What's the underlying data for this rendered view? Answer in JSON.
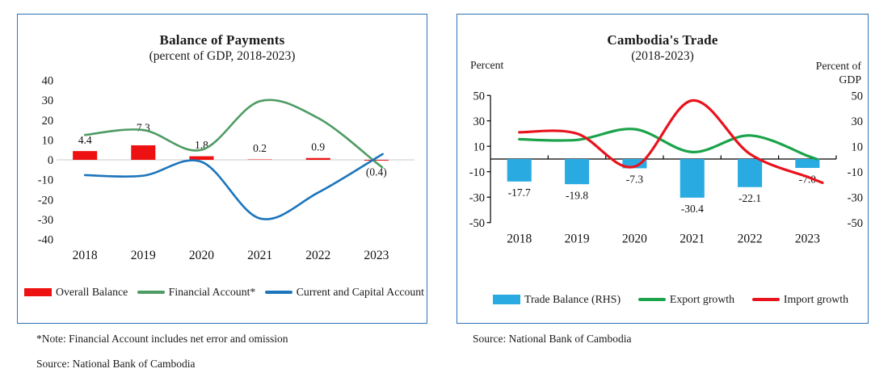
{
  "chart_data": [
    {
      "type": "bar+line combo",
      "title": "Balance of Payments",
      "subtitle": "(percent of GDP, 2018-2023)",
      "categories": [
        "2018",
        "2019",
        "2020",
        "2021",
        "2022",
        "2023"
      ],
      "ylim": [
        -40,
        40
      ],
      "ytick_step": 10,
      "grid": "zero-line only",
      "legend_position": "bottom",
      "series": [
        {
          "name": "Overall Balance",
          "type": "bar",
          "color": "#ee1111",
          "values": [
            4.4,
            7.3,
            1.8,
            0.2,
            0.9,
            -0.4
          ],
          "labels": [
            "4.4",
            "7.3",
            "1.8",
            "0.2",
            "0.9",
            "(0.4)"
          ]
        },
        {
          "name": "Financial Account*",
          "type": "line",
          "color": "#4e9b63",
          "values": [
            12.5,
            15,
            5,
            29.5,
            21,
            -1.5
          ]
        },
        {
          "name": "Current and Capital Account",
          "type": "line",
          "color": "#1c75bc",
          "values": [
            -7.7,
            -8,
            -1,
            -29.5,
            -16.5,
            1
          ]
        }
      ],
      "note": "*Note: Financial Account includes net error and omission",
      "source": "Source: National Bank of Cambodia"
    },
    {
      "type": "bar+line combo",
      "title": "Cambodia's Trade",
      "subtitle": "(2018-2023)",
      "categories": [
        "2018",
        "2019",
        "2020",
        "2021",
        "2022",
        "2023"
      ],
      "ylim": [
        -50,
        50
      ],
      "ytick_step": 20,
      "left_axis_label": "Percent",
      "right_axis_label": "Percent of\nGDP",
      "legend_position": "bottom",
      "series": [
        {
          "name": "Trade Balance (RHS)",
          "type": "bar",
          "color": "#29abe2",
          "values": [
            -17.7,
            -19.8,
            -7.3,
            -30.4,
            -22.1,
            -7.0
          ],
          "labels": [
            "-17.7",
            "-19.8",
            "-7.3",
            "-30.4",
            "-22.1",
            "-7.0"
          ]
        },
        {
          "name": "Export growth",
          "type": "line",
          "color": "#1aa34a",
          "values": [
            15.5,
            15,
            23.5,
            5.5,
            18.5,
            2.5
          ]
        },
        {
          "name": "Import growth",
          "type": "line",
          "color": "#e8131c",
          "values": [
            21,
            20,
            -6,
            46,
            4,
            -14
          ]
        }
      ],
      "source": "Source: National Bank of Cambodia"
    }
  ]
}
